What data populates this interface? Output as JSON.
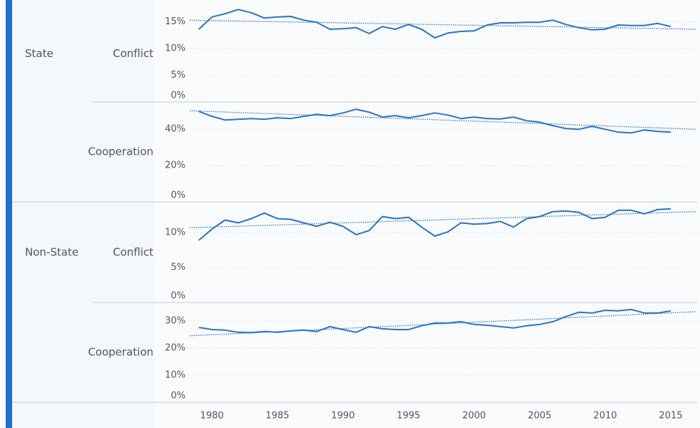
{
  "chart_data": [
    {
      "type": "line",
      "group": "State",
      "measure": "Conflict",
      "x": [
        1979,
        1980,
        1981,
        1982,
        1983,
        1984,
        1985,
        1986,
        1987,
        1988,
        1989,
        1990,
        1991,
        1992,
        1993,
        1994,
        1995,
        1996,
        1997,
        1998,
        1999,
        2000,
        2001,
        2002,
        2003,
        2004,
        2005,
        2006,
        2007,
        2008,
        2009,
        2010,
        2011,
        2012,
        2013,
        2014,
        2015
      ],
      "series": [
        {
          "color": "#2b74c6",
          "values": [
            13.6,
            15.9,
            16.5,
            17.3,
            16.7,
            15.7,
            15.9,
            16.0,
            15.3,
            14.9,
            13.6,
            13.7,
            13.9,
            12.8,
            14.1,
            13.6,
            14.5,
            13.6,
            12.0,
            12.9,
            13.2,
            13.3,
            14.4,
            14.8,
            14.8,
            14.9,
            14.9,
            15.3,
            14.5,
            13.9,
            13.5,
            13.6,
            14.4,
            14.3,
            14.3,
            14.7,
            14.1
          ]
        }
      ],
      "trendline": {
        "x": [
          1978.3,
          2016.9
        ],
        "values": [
          15.3,
          13.6
        ],
        "color": "#2b6fc0"
      },
      "xlim": [
        1976,
        2017
      ],
      "ylim": [
        0,
        18
      ],
      "yticks": [
        {
          "value": 0,
          "label": "0%"
        },
        {
          "value": 5,
          "label": "5%"
        },
        {
          "value": 10,
          "label": "10%"
        },
        {
          "value": 15,
          "label": "15%"
        }
      ],
      "grid": true
    },
    {
      "type": "line",
      "measure": "Cooperation",
      "x": [
        1979,
        1980,
        1981,
        1982,
        1983,
        1984,
        1985,
        1986,
        1987,
        1988,
        1989,
        1990,
        1991,
        1992,
        1993,
        1994,
        1995,
        1996,
        1997,
        1998,
        1999,
        2000,
        2001,
        2002,
        2003,
        2004,
        2005,
        2006,
        2007,
        2008,
        2009,
        2010,
        2011,
        2012,
        2013,
        2014,
        2015
      ],
      "series": [
        {
          "color": "#2b74c6",
          "values": [
            49.8,
            47.1,
            45.1,
            45.5,
            45.9,
            45.5,
            46.3,
            45.9,
            47.1,
            48.2,
            47.5,
            49.0,
            51.0,
            49.4,
            46.7,
            47.5,
            46.3,
            47.5,
            49.0,
            47.8,
            45.9,
            46.7,
            45.9,
            45.7,
            46.7,
            44.7,
            43.9,
            42.0,
            40.4,
            40.0,
            41.6,
            40.0,
            38.4,
            38.0,
            39.6,
            38.8,
            38.4
          ]
        }
      ],
      "trendline": {
        "x": [
          1978.3,
          2016.9
        ],
        "values": [
          50.2,
          40.0
        ],
        "color": "#2b6fc0"
      },
      "xlim": [
        1976,
        2017
      ],
      "ylim": [
        0,
        55
      ],
      "yticks": [
        {
          "value": 0,
          "label": "0%"
        },
        {
          "value": 20,
          "label": "20%"
        },
        {
          "value": 40,
          "label": "40%"
        }
      ],
      "grid": true
    },
    {
      "type": "line",
      "group": "Non-State",
      "measure": "Conflict",
      "x": [
        1979,
        1980,
        1981,
        1982,
        1983,
        1984,
        1985,
        1986,
        1987,
        1988,
        1989,
        1990,
        1991,
        1992,
        1993,
        1994,
        1995,
        1996,
        1997,
        1998,
        1999,
        2000,
        2001,
        2002,
        2003,
        2004,
        2005,
        2006,
        2007,
        2008,
        2009,
        2010,
        2011,
        2012,
        2013,
        2014,
        2015
      ],
      "series": [
        {
          "color": "#2b74c6",
          "values": [
            8.9,
            10.5,
            11.8,
            11.4,
            12.0,
            12.8,
            12.0,
            11.9,
            11.4,
            10.9,
            11.5,
            10.9,
            9.7,
            10.3,
            12.3,
            12.0,
            12.2,
            10.8,
            9.5,
            10.1,
            11.4,
            11.2,
            11.3,
            11.6,
            10.8,
            12.0,
            12.3,
            13.0,
            13.1,
            12.9,
            12.0,
            12.2,
            13.2,
            13.2,
            12.7,
            13.3,
            13.4
          ]
        }
      ],
      "trendline": {
        "x": [
          1978.3,
          2016.9
        ],
        "values": [
          10.7,
          13.0
        ],
        "color": "#2b6fc0"
      },
      "xlim": [
        1976,
        2017
      ],
      "ylim": [
        0,
        14.3
      ],
      "yticks": [
        {
          "value": 0,
          "label": "0%"
        },
        {
          "value": 5,
          "label": "5%"
        },
        {
          "value": 10,
          "label": "10%"
        }
      ],
      "grid": true
    },
    {
      "type": "line",
      "measure": "Cooperation",
      "x": [
        1979,
        1980,
        1981,
        1982,
        1983,
        1984,
        1985,
        1986,
        1987,
        1988,
        1989,
        1990,
        1991,
        1992,
        1993,
        1994,
        1995,
        1996,
        1997,
        1998,
        1999,
        2000,
        2001,
        2002,
        2003,
        2004,
        2005,
        2006,
        2007,
        2008,
        2009,
        2010,
        2011,
        2012,
        2013,
        2014,
        2015
      ],
      "series": [
        {
          "color": "#2b74c6",
          "values": [
            27.6,
            26.8,
            26.6,
            25.8,
            25.7,
            26.1,
            25.8,
            26.3,
            26.6,
            26.1,
            27.9,
            26.8,
            25.8,
            27.9,
            27.1,
            26.8,
            26.8,
            28.2,
            29.2,
            29.2,
            29.7,
            28.7,
            28.4,
            27.9,
            27.4,
            28.2,
            28.7,
            29.7,
            31.6,
            33.2,
            32.9,
            33.9,
            33.7,
            34.2,
            32.9,
            32.9,
            33.7
          ]
        }
      ],
      "trendline": {
        "x": [
          1978.3,
          2016.9
        ],
        "values": [
          24.5,
          33.4
        ],
        "color": "#2b6fc0"
      },
      "xlim": [
        1976,
        2017
      ],
      "ylim": [
        0,
        36.8
      ],
      "yticks": [
        {
          "value": 0,
          "label": "0%"
        },
        {
          "value": 10,
          "label": "10%"
        },
        {
          "value": 20,
          "label": "20%"
        },
        {
          "value": 30,
          "label": "30%"
        }
      ],
      "grid": true,
      "xticks": [
        1980,
        1985,
        1990,
        1995,
        2000,
        2005,
        2010,
        2015
      ]
    }
  ]
}
